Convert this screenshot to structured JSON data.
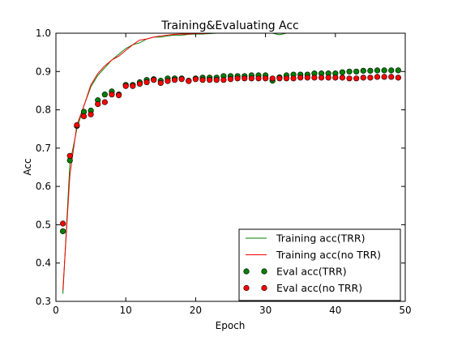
{
  "chart_data": {
    "type": "line",
    "title": "Training&Evaluating Acc",
    "xlabel": "Epoch",
    "ylabel": "Acc",
    "xlim": [
      0,
      50
    ],
    "ylim": [
      0.3,
      1.0
    ],
    "x_ticks": [
      0,
      10,
      20,
      30,
      40,
      50
    ],
    "y_ticks": [
      0.3,
      0.4,
      0.5,
      0.6,
      0.7,
      0.8,
      0.9,
      1.0
    ],
    "x_tick_labels": [
      "0",
      "10",
      "20",
      "30",
      "40",
      "50"
    ],
    "y_tick_labels": [
      "0.3",
      "0.4",
      "0.5",
      "0.6",
      "0.7",
      "0.8",
      "0.9",
      "1.0"
    ],
    "grid": false,
    "legend_position": "bottom-right",
    "x": [
      1,
      2,
      3,
      4,
      5,
      6,
      7,
      8,
      9,
      10,
      11,
      12,
      13,
      14,
      15,
      16,
      17,
      18,
      19,
      20,
      21,
      22,
      23,
      24,
      25,
      26,
      27,
      28,
      29,
      30,
      31,
      32,
      33,
      34,
      35,
      36,
      37,
      38,
      39,
      40,
      41,
      42,
      43,
      44,
      45,
      46,
      47,
      48,
      49
    ],
    "series": [
      {
        "name": "Training acc(TRR)",
        "kind": "line",
        "color": "#008000",
        "values": [
          0.32,
          0.66,
          0.75,
          0.81,
          0.86,
          0.89,
          0.91,
          0.93,
          0.945,
          0.96,
          0.97,
          0.975,
          0.985,
          0.99,
          0.99,
          0.993,
          0.995,
          0.995,
          0.997,
          0.998,
          0.998,
          0.999,
          1.0,
          1.0,
          1.0,
          1.0,
          1.0,
          1.0,
          1.0,
          1.0,
          1.0,
          0.996,
          1.0,
          1.0,
          1.0,
          1.0,
          1.0,
          1.0,
          1.0,
          1.0,
          1.0,
          1.0,
          1.0,
          1.0,
          1.0,
          1.0,
          1.0,
          1.0,
          1.0
        ]
      },
      {
        "name": "Training acc(no TRR)",
        "kind": "line",
        "color": "#ff0000",
        "values": [
          0.33,
          0.63,
          0.76,
          0.81,
          0.865,
          0.895,
          0.915,
          0.93,
          0.94,
          0.955,
          0.97,
          0.982,
          0.985,
          0.99,
          0.993,
          0.995,
          0.997,
          0.998,
          0.998,
          0.999,
          0.999,
          1.0,
          1.0,
          1.0,
          1.0,
          1.0,
          1.0,
          1.0,
          1.0,
          1.0,
          1.0,
          1.0,
          1.0,
          1.0,
          1.0,
          1.0,
          1.0,
          1.0,
          1.0,
          1.0,
          1.0,
          1.0,
          1.0,
          1.0,
          1.0,
          1.0,
          1.0,
          1.0,
          1.0
        ]
      },
      {
        "name": "Eval acc(TRR)",
        "kind": "scatter",
        "color": "#008000",
        "values": [
          0.483,
          0.668,
          0.758,
          0.795,
          0.798,
          0.825,
          0.84,
          0.848,
          0.84,
          0.865,
          0.865,
          0.872,
          0.878,
          0.88,
          0.876,
          0.882,
          0.882,
          0.882,
          0.876,
          0.882,
          0.884,
          0.884,
          0.884,
          0.888,
          0.888,
          0.888,
          0.888,
          0.89,
          0.89,
          0.89,
          0.876,
          0.885,
          0.89,
          0.892,
          0.892,
          0.892,
          0.895,
          0.895,
          0.895,
          0.895,
          0.898,
          0.9,
          0.9,
          0.902,
          0.902,
          0.903,
          0.903,
          0.903,
          0.903
        ]
      },
      {
        "name": "Eval acc(no TRR)",
        "kind": "scatter",
        "color": "#ff0000",
        "values": [
          0.503,
          0.68,
          0.76,
          0.783,
          0.788,
          0.815,
          0.82,
          0.84,
          0.838,
          0.862,
          0.862,
          0.868,
          0.872,
          0.878,
          0.87,
          0.875,
          0.878,
          0.88,
          0.875,
          0.88,
          0.878,
          0.878,
          0.878,
          0.878,
          0.88,
          0.882,
          0.882,
          0.882,
          0.882,
          0.882,
          0.882,
          0.882,
          0.882,
          0.882,
          0.884,
          0.884,
          0.884,
          0.884,
          0.884,
          0.884,
          0.884,
          0.882,
          0.882,
          0.884,
          0.884,
          0.886,
          0.886,
          0.886,
          0.884
        ]
      }
    ]
  }
}
